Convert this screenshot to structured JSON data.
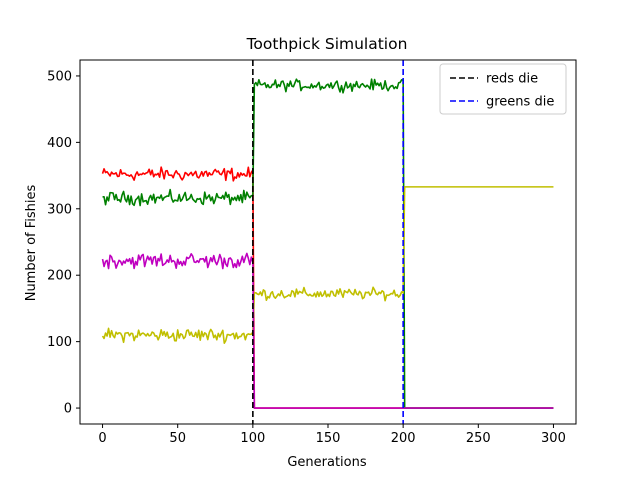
{
  "chart_data": {
    "type": "line",
    "title": "Toothpick Simulation",
    "xlabel": "Generations",
    "ylabel": "Number of Fishies",
    "xlim": [
      -15,
      315
    ],
    "ylim": [
      -24,
      524
    ],
    "xticks": [
      0,
      50,
      100,
      150,
      200,
      250,
      300
    ],
    "yticks": [
      0,
      100,
      200,
      300,
      400,
      500
    ],
    "grid": false,
    "legend_position": "top-right",
    "series": [
      {
        "color": "#ff0000",
        "generations": [
          0,
          100
        ],
        "mean": 352,
        "noise": 6,
        "after": [
          {
            "from": 101,
            "to": 300,
            "value": 0
          }
        ]
      },
      {
        "color": "#008000",
        "generations": [
          0,
          100
        ],
        "mean": 316,
        "noise": 6,
        "after": [
          {
            "from": 101,
            "to": 200,
            "mean": 486,
            "noise": 5
          },
          {
            "from": 201,
            "to": 300,
            "value": 0
          }
        ]
      },
      {
        "color": "#c0bf00",
        "generations": [
          0,
          100
        ],
        "mean": 110,
        "noise": 6,
        "after": [
          {
            "from": 101,
            "to": 200,
            "mean": 172,
            "noise": 5
          },
          {
            "from": 201,
            "to": 300,
            "value": 333
          }
        ]
      },
      {
        "color": "#bf00bf",
        "generations": [
          0,
          100
        ],
        "mean": 222,
        "noise": 7,
        "after": [
          {
            "from": 101,
            "to": 300,
            "value": 0
          }
        ]
      }
    ],
    "vlines": [
      {
        "x": 100,
        "name": "reds die",
        "color": "#000000"
      },
      {
        "x": 200,
        "name": "greens die",
        "color": "#0000ff"
      }
    ]
  }
}
